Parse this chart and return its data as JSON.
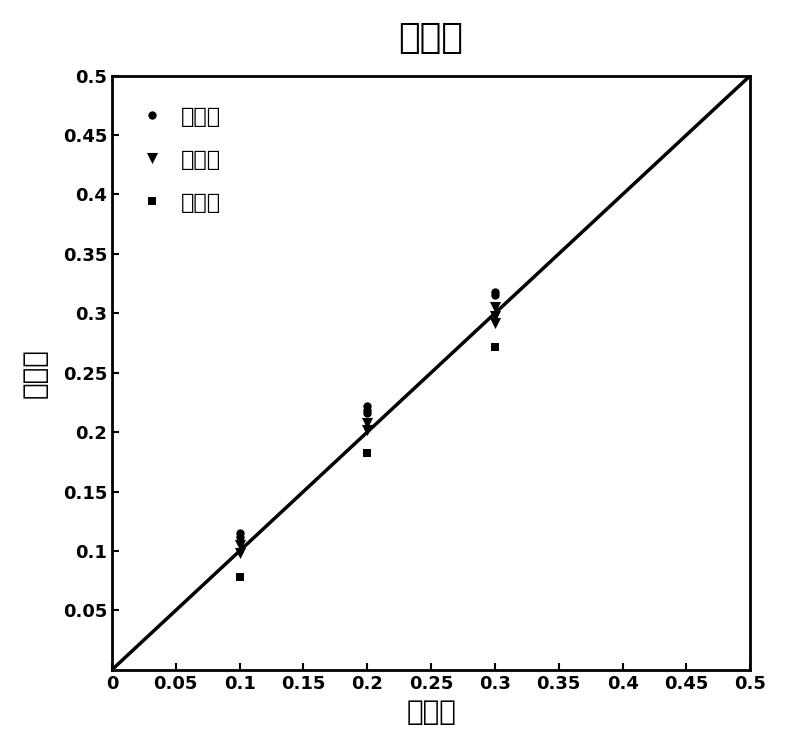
{
  "title": "预测集",
  "xlabel": "实际値",
  "ylabel": "预测値",
  "line_x": [
    0,
    0.5
  ],
  "line_y": [
    0,
    0.5
  ],
  "line_color": "#000000",
  "line_width": 2.5,
  "xlim": [
    0,
    0.5
  ],
  "ylim": [
    0,
    0.5
  ],
  "xticks": [
    0,
    0.05,
    0.1,
    0.15,
    0.2,
    0.25,
    0.3,
    0.35,
    0.4,
    0.45,
    0.5
  ],
  "yticks": [
    0.05,
    0.1,
    0.15,
    0.2,
    0.25,
    0.3,
    0.35,
    0.4,
    0.45,
    0.5
  ],
  "series": [
    {
      "name": "毒死蝴",
      "marker": "o",
      "color": "#000000",
      "markersize": 6,
      "points": [
        [
          0.1,
          0.115
        ],
        [
          0.1,
          0.112
        ],
        [
          0.2,
          0.222
        ],
        [
          0.2,
          0.219
        ],
        [
          0.2,
          0.216
        ],
        [
          0.3,
          0.318
        ],
        [
          0.3,
          0.315
        ]
      ]
    },
    {
      "name": "啊虫脊",
      "marker": "v",
      "color": "#000000",
      "markersize": 8,
      "points": [
        [
          0.1,
          0.105
        ],
        [
          0.1,
          0.098
        ],
        [
          0.2,
          0.208
        ],
        [
          0.2,
          0.202
        ],
        [
          0.3,
          0.305
        ],
        [
          0.3,
          0.298
        ],
        [
          0.3,
          0.292
        ]
      ]
    },
    {
      "name": "福美双",
      "marker": "s",
      "color": "#000000",
      "markersize": 6,
      "points": [
        [
          0.1,
          0.078
        ],
        [
          0.2,
          0.182
        ],
        [
          0.3,
          0.272
        ]
      ]
    }
  ],
  "title_fontsize": 26,
  "label_fontsize": 20,
  "tick_fontsize": 13,
  "legend_fontsize": 16,
  "background_color": "#ffffff"
}
